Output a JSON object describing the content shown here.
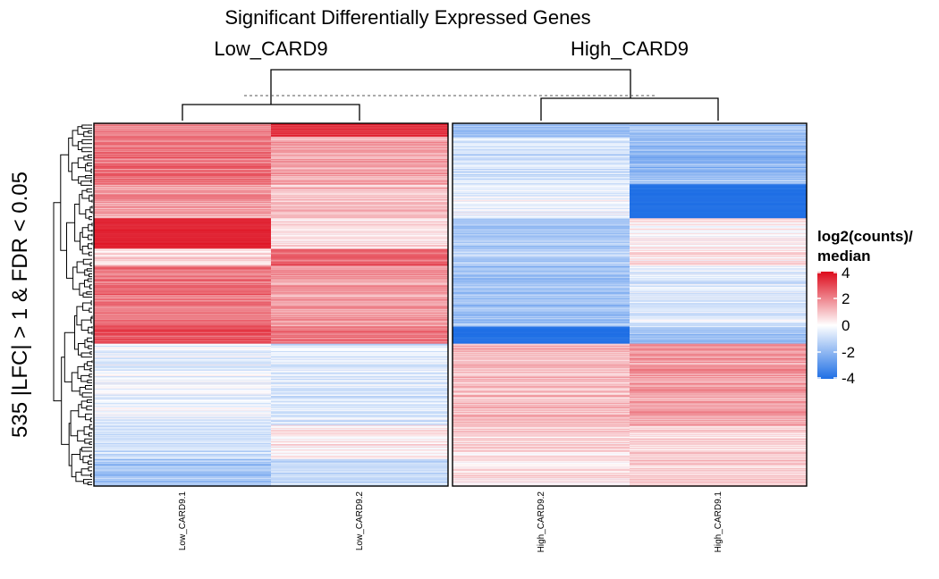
{
  "chart_data": {
    "type": "heatmap",
    "title": "Significant Differentially Expressed Genes",
    "row_title": "535 |LFC| > 1 & FDR < 0.05",
    "column_groups": [
      "Low_CARD9",
      "High_CARD9"
    ],
    "columns": [
      "Low_CARD9.1",
      "Low_CARD9.2",
      "High_CARD9.2",
      "High_CARD9.1"
    ],
    "column_group_membership": [
      "Low_CARD9",
      "Low_CARD9",
      "High_CARD9",
      "High_CARD9"
    ],
    "n_rows": 535,
    "value_range": [
      -4,
      4
    ],
    "legend": {
      "title_line1": "log2(counts)/",
      "title_line2": "median",
      "ticks": [
        "4",
        "2",
        "0",
        "-2",
        "-4"
      ],
      "tick_values": [
        4,
        2,
        0,
        -2,
        -4
      ],
      "colors": {
        "high": "#dd0a1b",
        "mid": "#ffffff",
        "low": "#1f6fe5"
      }
    },
    "row_blocks": [
      {
        "rows": 20,
        "values": [
          2.0,
          3.4,
          -1.8,
          -1.6
        ]
      },
      {
        "rows": 70,
        "values": [
          2.3,
          1.5,
          -0.8,
          -1.9
        ]
      },
      {
        "rows": 50,
        "values": [
          1.6,
          1.1,
          -0.2,
          -4.0
        ]
      },
      {
        "rows": 45,
        "values": [
          3.6,
          0.6,
          -1.6,
          0.2
        ]
      },
      {
        "rows": 25,
        "values": [
          0.7,
          2.5,
          -1.2,
          0.4
        ]
      },
      {
        "rows": 90,
        "values": [
          2.3,
          1.6,
          -1.7,
          -0.6
        ]
      },
      {
        "rows": 25,
        "values": [
          2.8,
          2.2,
          -4.0,
          -1.8
        ]
      },
      {
        "rows": 120,
        "values": [
          -0.4,
          -0.6,
          1.1,
          1.6
        ]
      },
      {
        "rows": 50,
        "values": [
          -0.9,
          0.4,
          0.6,
          0.7
        ]
      },
      {
        "rows": 40,
        "values": [
          -1.6,
          -0.9,
          0.4,
          0.9
        ]
      }
    ],
    "grid": false,
    "legend_position": "right"
  }
}
